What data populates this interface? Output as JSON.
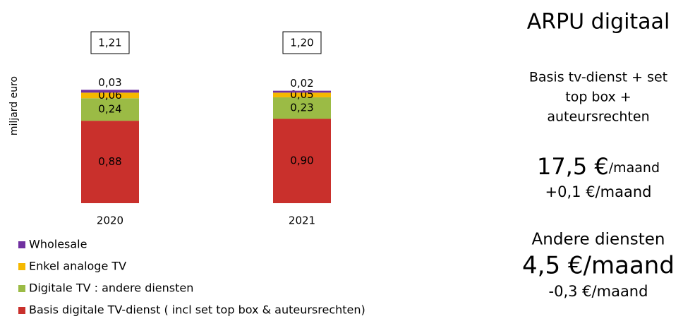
{
  "chart_data": {
    "type": "stacked_bar",
    "y_label": "miljard euro",
    "categories": [
      "2020",
      "2021"
    ],
    "series": [
      {
        "name": "Basis digitale TV-dienst ( incl set top box & auteursrechten)",
        "color": "#c9302c",
        "values": [
          0.88,
          0.9
        ],
        "value_labels": [
          "0,88",
          "0,90"
        ]
      },
      {
        "name": "Digitale TV : andere diensten",
        "color": "#9bbb45",
        "values": [
          0.24,
          0.23
        ],
        "value_labels": [
          "0,24",
          "0,23"
        ]
      },
      {
        "name": "Enkel analoge TV",
        "color": "#f5b800",
        "values": [
          0.06,
          0.05
        ],
        "value_labels": [
          "0,06",
          "0,05"
        ]
      },
      {
        "name": "Wholesale",
        "color": "#7030a0",
        "values": [
          0.03,
          0.02
        ],
        "value_labels": [
          "0,03",
          "0,02"
        ]
      }
    ],
    "totals": [
      1.21,
      1.2
    ],
    "total_labels": [
      "1,21",
      "1,20"
    ],
    "ylim": [
      0,
      1.25
    ]
  },
  "side": {
    "title": "ARPU digitaal",
    "basis_lines": [
      "Basis tv-dienst + set",
      "top box +",
      "auteursrechten"
    ],
    "basis_value": "17,5 €",
    "basis_unit": "/maand",
    "basis_change": "+0,1 €/maand",
    "andere_title": "Andere diensten",
    "andere_value": "4,5 €/maand",
    "andere_change": "-0,3 €/maand"
  }
}
